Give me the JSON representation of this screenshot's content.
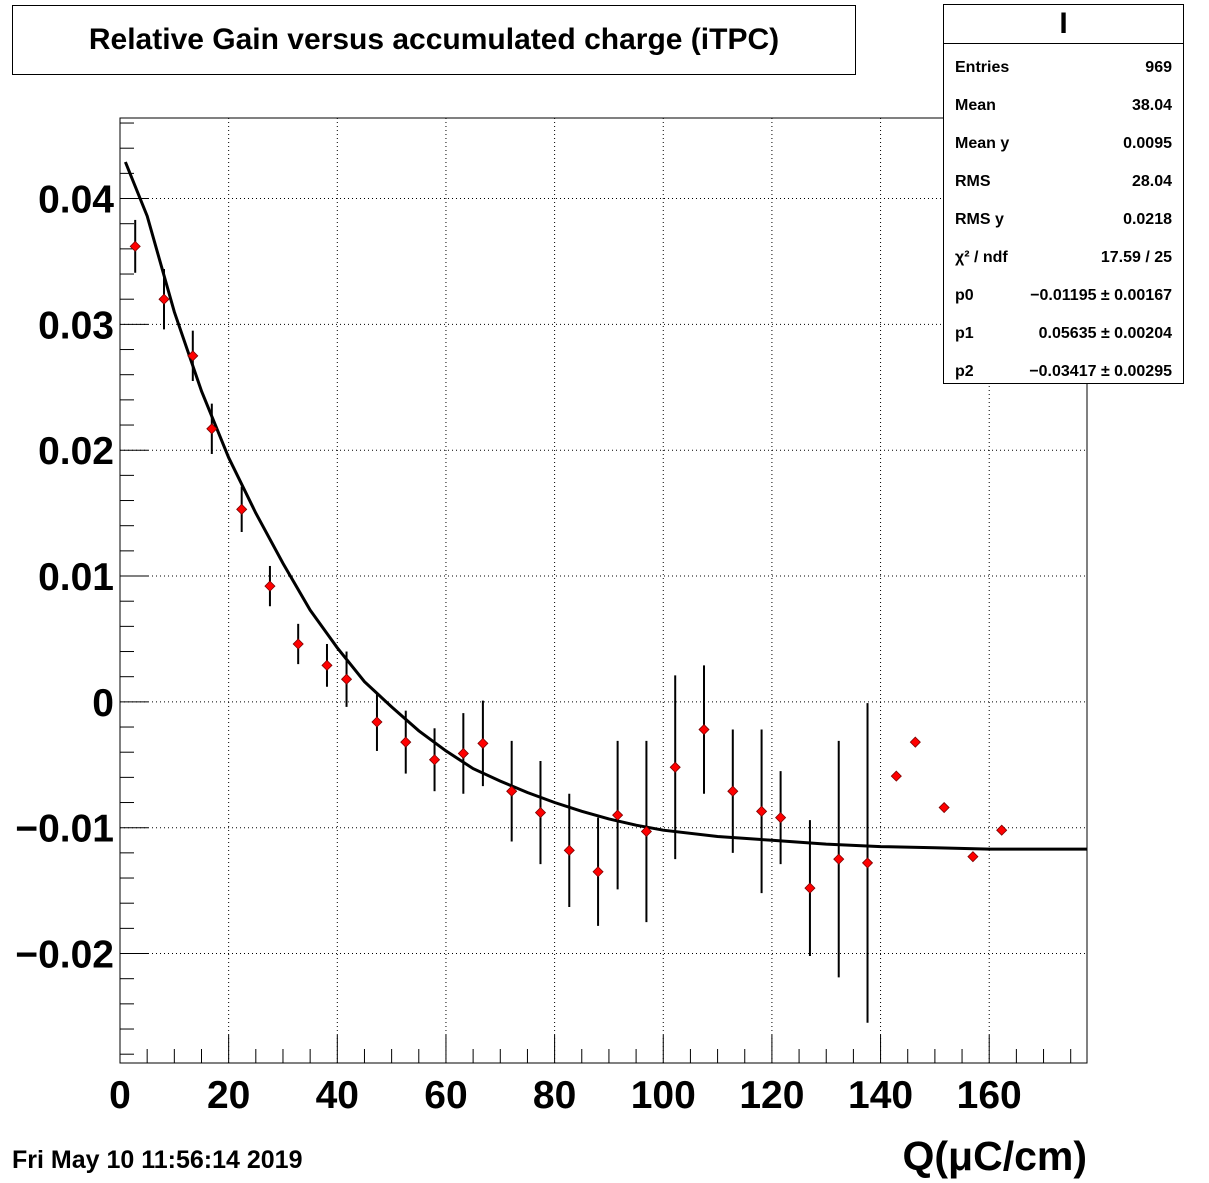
{
  "title": "Relative Gain versus accumulated charge (iTPC)",
  "date": "Fri May 10 11:56:14 2019",
  "stats": {
    "name": "I",
    "rows": [
      {
        "label": "Entries",
        "value": "969"
      },
      {
        "label": "Mean",
        "value": "38.04"
      },
      {
        "label": "Mean y",
        "value": "0.0095"
      },
      {
        "label": "RMS",
        "value": "28.04"
      },
      {
        "label": "RMS y",
        "value": "0.0218"
      },
      {
        "label": "χ² / ndf",
        "value": "17.59 / 25"
      },
      {
        "label": "p0",
        "value": "−0.01195 ± 0.00167"
      },
      {
        "label": "p1",
        "value": "0.05635 ± 0.00204"
      },
      {
        "label": "p2",
        "value": "−0.03417 ± 0.00295"
      }
    ]
  },
  "chart_data": {
    "type": "scatter",
    "title": "Relative Gain versus accumulated charge (iTPC)",
    "xlabel": "Q(μC/cm)",
    "ylabel": "",
    "xlim": [
      0,
      178
    ],
    "ylim": [
      -0.0287,
      0.0464
    ],
    "grid": true,
    "xticks": [
      0,
      20,
      40,
      60,
      80,
      100,
      120,
      140,
      160
    ],
    "xtick_labels": [
      "0",
      "20",
      "40",
      "60",
      "80",
      "100",
      "120",
      "140",
      "160"
    ],
    "yticks": [
      -0.02,
      -0.01,
      0,
      0.01,
      0.02,
      0.03,
      0.04
    ],
    "ytick_labels": [
      "−0.02",
      "−0.01",
      "0",
      "0.01",
      "0.02",
      "0.03",
      "0.04"
    ],
    "points": [
      {
        "x": 2.8,
        "y": 0.0362,
        "err": 0.0021
      },
      {
        "x": 8.1,
        "y": 0.032,
        "err": 0.0024
      },
      {
        "x": 13.4,
        "y": 0.0275,
        "err": 0.002
      },
      {
        "x": 16.9,
        "y": 0.0217,
        "err": 0.002
      },
      {
        "x": 22.4,
        "y": 0.0153,
        "err": 0.0018
      },
      {
        "x": 27.6,
        "y": 0.0092,
        "err": 0.0016
      },
      {
        "x": 32.8,
        "y": 0.0046,
        "err": 0.0016
      },
      {
        "x": 38.1,
        "y": 0.0029,
        "err": 0.0017
      },
      {
        "x": 41.7,
        "y": 0.0018,
        "err": 0.0022
      },
      {
        "x": 47.3,
        "y": -0.0016,
        "err": 0.0023
      },
      {
        "x": 52.6,
        "y": -0.0032,
        "err": 0.0025
      },
      {
        "x": 57.9,
        "y": -0.0046,
        "err": 0.0025
      },
      {
        "x": 63.2,
        "y": -0.0041,
        "err": 0.0032
      },
      {
        "x": 66.8,
        "y": -0.0033,
        "err": 0.0034
      },
      {
        "x": 72.1,
        "y": -0.0071,
        "err": 0.004
      },
      {
        "x": 77.4,
        "y": -0.0088,
        "err": 0.0041
      },
      {
        "x": 82.7,
        "y": -0.0118,
        "err": 0.0045
      },
      {
        "x": 88.0,
        "y": -0.0135,
        "err": 0.0043
      },
      {
        "x": 91.6,
        "y": -0.009,
        "err": 0.0059
      },
      {
        "x": 96.9,
        "y": -0.0103,
        "err": 0.0072
      },
      {
        "x": 102.2,
        "y": -0.0052,
        "err": 0.0073
      },
      {
        "x": 107.5,
        "y": -0.0022,
        "err": 0.0051
      },
      {
        "x": 112.8,
        "y": -0.0071,
        "err": 0.0049
      },
      {
        "x": 118.1,
        "y": -0.0087,
        "err": 0.0065
      },
      {
        "x": 121.6,
        "y": -0.0092,
        "err": 0.0037
      },
      {
        "x": 127.0,
        "y": -0.0148,
        "err": 0.0054
      },
      {
        "x": 132.3,
        "y": -0.0125,
        "err": 0.0094
      },
      {
        "x": 137.6,
        "y": -0.0128,
        "err": 0.0127
      },
      {
        "x": 142.9,
        "y": -0.0059,
        "err": 0
      },
      {
        "x": 146.4,
        "y": -0.0032,
        "err": 0
      },
      {
        "x": 151.7,
        "y": -0.0084,
        "err": 0
      },
      {
        "x": 157.0,
        "y": -0.0123,
        "err": 0
      },
      {
        "x": 162.3,
        "y": -0.0102,
        "err": 0
      }
    ],
    "fit": {
      "type": "line",
      "x": [
        1,
        5,
        10,
        15,
        20,
        25,
        30,
        35,
        40,
        45,
        50,
        55,
        60,
        65,
        70,
        75,
        80,
        85,
        90,
        95,
        100,
        110,
        120,
        130,
        140,
        150,
        160,
        170,
        178
      ],
      "y": [
        0.0429,
        0.0386,
        0.031,
        0.0247,
        0.0194,
        0.015,
        0.011,
        0.0073,
        0.0043,
        0.0016,
        -0.0004,
        -0.0023,
        -0.0039,
        -0.0053,
        -0.0063,
        -0.0072,
        -0.008,
        -0.0087,
        -0.0093,
        -0.0098,
        -0.0102,
        -0.0107,
        -0.011,
        -0.0113,
        -0.0115,
        -0.0116,
        -0.0117,
        -0.0117,
        -0.0117
      ]
    }
  }
}
